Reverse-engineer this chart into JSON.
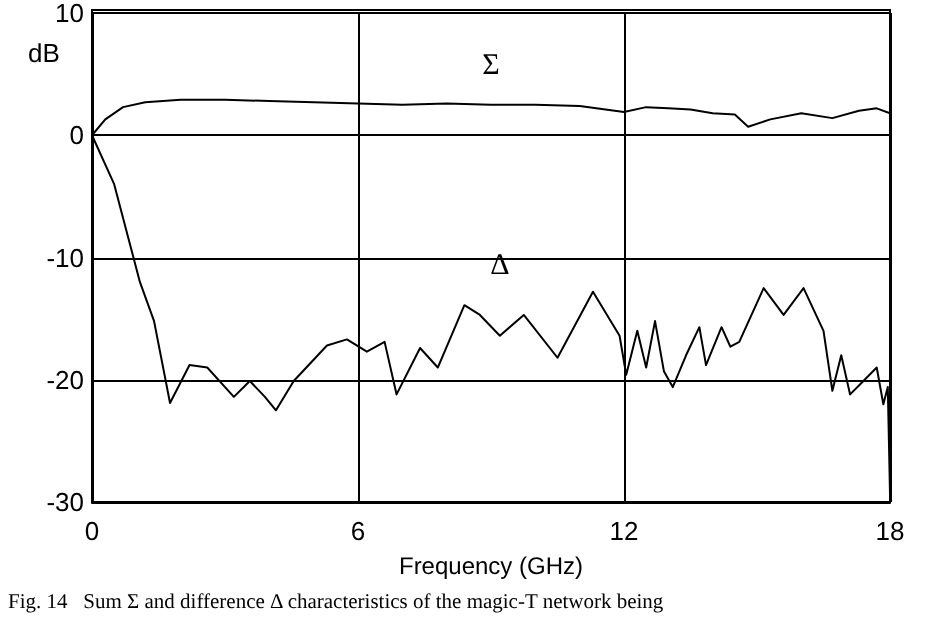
{
  "chart_data": {
    "type": "line",
    "xlabel": "Frequency (GHz)",
    "ylabel": "dB",
    "xlim": [
      0,
      18
    ],
    "xticks": [
      0,
      6,
      12,
      18
    ],
    "ylim": [
      -30,
      10
    ],
    "yticks": [
      -30,
      -20,
      -10,
      0,
      10
    ],
    "grid": true,
    "legend": false,
    "marker": "none",
    "line_style": "solid",
    "annotations": [
      "Fig. 14   Sum Σ and difference Δ characteristics of the magic-T network being"
    ],
    "series": [
      {
        "name": "Σ",
        "color": "#000000",
        "x": [
          0,
          0.3,
          0.7,
          1.2,
          2,
          3,
          4,
          5,
          6,
          7,
          8,
          9,
          10,
          11,
          12,
          12.5,
          13,
          13.5,
          14,
          14.5,
          14.8,
          15.3,
          16,
          16.7,
          17.3,
          17.7,
          18
        ],
        "values": [
          0,
          1.3,
          2.3,
          2.7,
          2.9,
          2.9,
          2.8,
          2.7,
          2.6,
          2.5,
          2.6,
          2.5,
          2.5,
          2.4,
          1.9,
          2.3,
          2.2,
          2.1,
          1.8,
          1.7,
          0.7,
          1.3,
          1.8,
          1.4,
          2.0,
          2.2,
          1.8
        ]
      },
      {
        "name": "Δ",
        "color": "#000000",
        "x": [
          0,
          0.5,
          1.08,
          1.4,
          1.76,
          2.2,
          2.6,
          3.2,
          3.56,
          3.9,
          4.15,
          4.55,
          5.3,
          5.75,
          6.2,
          6.6,
          6.87,
          7.4,
          7.8,
          8.4,
          8.75,
          9.2,
          9.74,
          10.5,
          11.3,
          11.9,
          12.05,
          12.3,
          12.5,
          12.7,
          12.9,
          13.1,
          13.4,
          13.7,
          13.85,
          14.2,
          14.4,
          14.6,
          15.15,
          15.6,
          16.05,
          16.5,
          16.7,
          16.9,
          17.1,
          17.4,
          17.7,
          17.85,
          17.95,
          18
        ],
        "values": [
          0,
          -4,
          -12,
          -15.2,
          -21.9,
          -18.8,
          -19,
          -21.4,
          -20.1,
          -21.4,
          -22.5,
          -20.1,
          -17.2,
          -16.7,
          -17.7,
          -16.9,
          -21.2,
          -17.4,
          -19,
          -13.9,
          -14.7,
          -16.4,
          -14.7,
          -18.2,
          -12.8,
          -16.4,
          -19.6,
          -16,
          -19,
          -15.2,
          -19.3,
          -20.6,
          -18,
          -15.7,
          -18.8,
          -15.7,
          -17.3,
          -16.9,
          -12.5,
          -14.7,
          -12.5,
          -16,
          -20.9,
          -18,
          -21.2,
          -20.1,
          -19,
          -22,
          -20.6,
          -29.3
        ]
      }
    ]
  }
}
